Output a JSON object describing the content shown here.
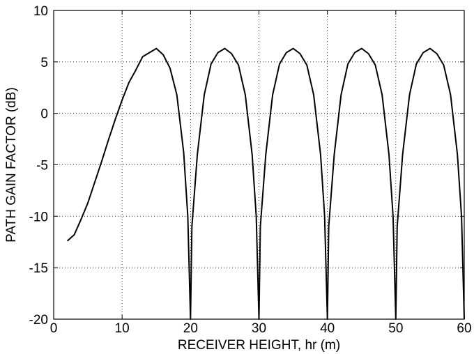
{
  "chart_data": {
    "type": "line",
    "title": "",
    "xlabel": "RECEIVER HEIGHT, hr (m)",
    "ylabel": "PATH GAIN FACTOR (dB)",
    "xlim": [
      0,
      60
    ],
    "ylim": [
      -20,
      10
    ],
    "x_ticks": [
      "0",
      "10",
      "20",
      "30",
      "40",
      "50",
      "60"
    ],
    "y_ticks": [
      "10",
      "5",
      "0",
      "-5",
      "-10",
      "-15",
      "-20"
    ],
    "x_tick_values": [
      0,
      10,
      20,
      30,
      40,
      50,
      60
    ],
    "y_tick_values": [
      10,
      5,
      0,
      -5,
      -10,
      -15,
      -20
    ],
    "grid": true,
    "grid_style": "dotted",
    "line_color": "#000000",
    "series": [
      {
        "x": [
          2,
          3,
          4,
          5,
          6,
          7,
          8,
          9,
          10,
          11,
          12,
          13,
          14,
          15,
          16,
          17,
          18,
          19,
          19.6,
          20,
          20.2,
          21,
          22,
          23,
          24,
          25,
          26,
          27,
          28,
          29,
          29.6,
          30,
          30.2,
          31,
          32,
          33,
          34,
          35,
          36,
          37,
          38,
          39,
          39.6,
          40,
          40.2,
          41,
          42,
          43,
          44,
          45,
          46,
          47,
          48,
          49,
          49.6,
          50,
          50.2,
          51,
          52,
          53,
          54,
          55,
          56,
          57,
          58,
          59,
          59.6,
          60
        ],
        "y": [
          -12.4,
          -11.8,
          -10.3,
          -8.7,
          -6.7,
          -4.7,
          -2.6,
          -0.6,
          1.3,
          3.0,
          4.2,
          5.5,
          5.9,
          6.3,
          5.7,
          4.4,
          1.8,
          -3.8,
          -10,
          -20,
          -11,
          -4.0,
          1.8,
          4.8,
          5.9,
          6.3,
          5.8,
          4.7,
          1.8,
          -4.0,
          -10,
          -20,
          -11,
          -4.0,
          1.8,
          4.8,
          5.9,
          6.3,
          5.8,
          4.7,
          1.8,
          -4.0,
          -10,
          -20,
          -11,
          -4.0,
          1.8,
          4.8,
          5.9,
          6.3,
          5.8,
          4.7,
          1.8,
          -4.0,
          -10,
          -20,
          -11,
          -4.0,
          1.8,
          4.8,
          5.9,
          6.3,
          5.8,
          4.7,
          1.8,
          -4.0,
          -10,
          -20
        ]
      }
    ]
  }
}
